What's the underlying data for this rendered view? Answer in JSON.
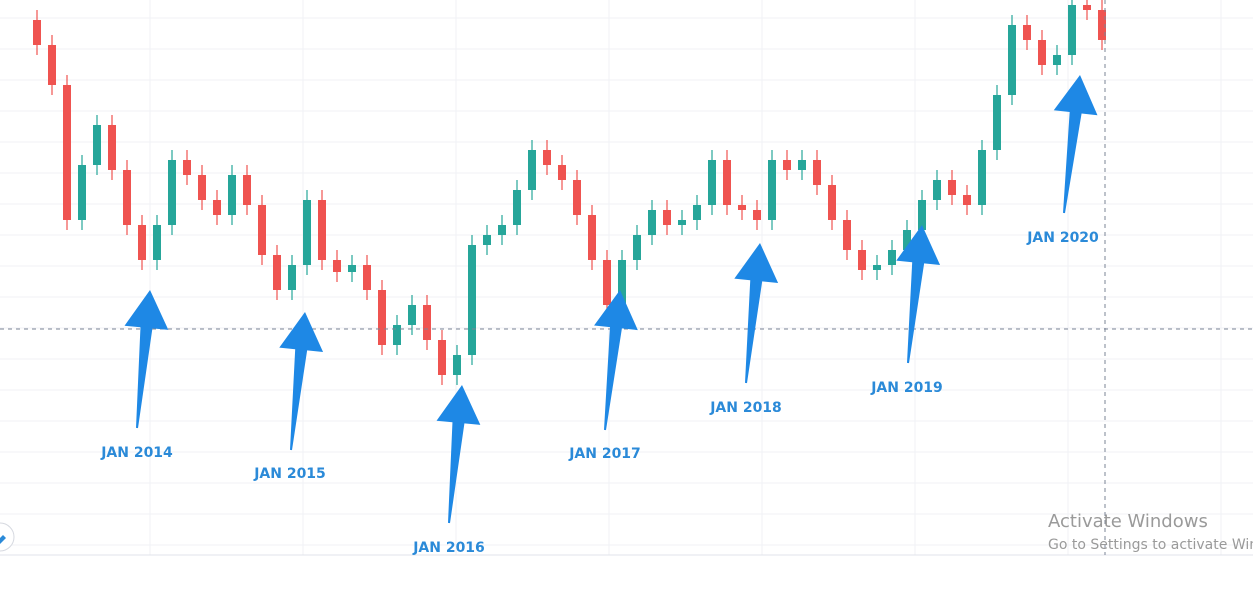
{
  "chart_data": {
    "type": "candlestick",
    "up_color": "#26a69a",
    "down_color": "#ef5350",
    "ylim": [
      0,
      555
    ],
    "open": [
      535,
      510,
      470,
      335,
      390,
      430,
      385,
      330,
      295,
      330,
      395,
      380,
      355,
      340,
      380,
      350,
      300,
      265,
      290,
      355,
      295,
      283,
      290,
      265,
      210,
      230,
      250,
      215,
      180,
      200,
      310,
      320,
      330,
      365,
      405,
      390,
      375,
      340,
      295,
      250,
      295,
      320,
      345,
      330,
      335,
      350,
      395,
      350,
      345,
      335,
      395,
      385,
      395,
      370,
      335,
      305,
      285,
      290,
      305,
      325,
      355,
      375,
      360,
      350,
      405,
      460,
      530,
      515,
      490,
      500,
      550,
      545
    ],
    "high": [
      545,
      520,
      480,
      400,
      440,
      440,
      395,
      340,
      340,
      405,
      405,
      390,
      365,
      390,
      390,
      360,
      310,
      300,
      365,
      365,
      305,
      300,
      300,
      275,
      240,
      260,
      260,
      225,
      210,
      320,
      330,
      340,
      375,
      415,
      415,
      400,
      385,
      350,
      305,
      305,
      330,
      355,
      355,
      345,
      360,
      405,
      405,
      360,
      355,
      405,
      405,
      405,
      405,
      380,
      345,
      315,
      300,
      315,
      335,
      365,
      385,
      385,
      370,
      415,
      470,
      540,
      540,
      525,
      510,
      560,
      560,
      555
    ],
    "low": [
      500,
      460,
      325,
      325,
      380,
      375,
      320,
      285,
      285,
      320,
      370,
      345,
      330,
      330,
      340,
      290,
      255,
      255,
      280,
      285,
      273,
      273,
      255,
      200,
      200,
      220,
      205,
      170,
      170,
      190,
      300,
      310,
      320,
      355,
      380,
      365,
      330,
      285,
      240,
      240,
      285,
      310,
      320,
      320,
      325,
      340,
      340,
      335,
      325,
      325,
      375,
      375,
      360,
      325,
      295,
      275,
      275,
      280,
      295,
      315,
      345,
      350,
      340,
      340,
      395,
      450,
      505,
      480,
      480,
      490,
      535,
      505
    ],
    "close": [
      510,
      470,
      335,
      390,
      430,
      385,
      330,
      295,
      330,
      395,
      380,
      355,
      340,
      380,
      350,
      300,
      265,
      290,
      355,
      295,
      283,
      290,
      265,
      210,
      230,
      250,
      215,
      180,
      200,
      310,
      320,
      330,
      365,
      405,
      390,
      375,
      340,
      295,
      250,
      295,
      320,
      345,
      330,
      335,
      350,
      395,
      350,
      345,
      335,
      395,
      385,
      395,
      370,
      335,
      305,
      285,
      290,
      305,
      325,
      355,
      375,
      360,
      350,
      405,
      460,
      530,
      515,
      490,
      500,
      550,
      545,
      515
    ],
    "annotations": [
      "JAN 2014",
      "JAN 2015",
      "JAN 2016",
      "JAN 2017",
      "JAN 2018",
      "JAN 2019",
      "JAN 2020"
    ],
    "watermark": {
      "title": "Activate Windows",
      "subtitle": "Go to Settings to activate Windows"
    }
  }
}
